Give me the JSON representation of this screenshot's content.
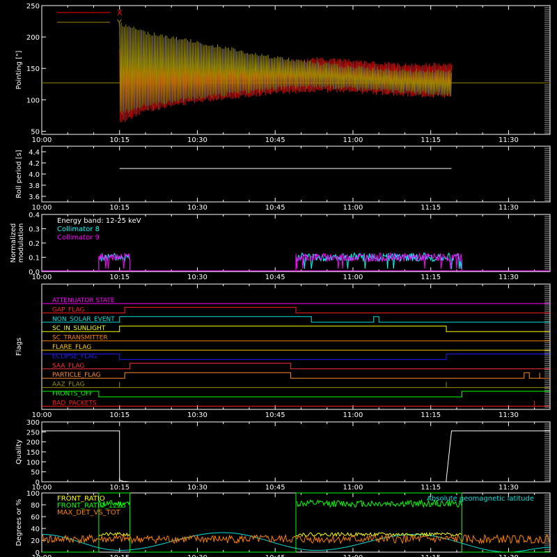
{
  "figure": {
    "background": "#000000",
    "axis_color": "#ffffff",
    "time_ticks": [
      "10:00",
      "10:15",
      "10:30",
      "10:45",
      "11:00",
      "11:15",
      "11:30"
    ]
  },
  "chart_data": [
    {
      "id": "pointing",
      "type": "line",
      "ylabel": "Pointing [\"]",
      "ylim": [
        45,
        250
      ],
      "yticks": [
        50,
        100,
        150,
        200,
        250
      ],
      "xlim": [
        "10:00",
        "11:38"
      ],
      "legend": {
        "placement": "top-left",
        "entries": [
          {
            "label": "X",
            "color": "#ff0000"
          },
          {
            "label": "Y",
            "color": "#9a8c00"
          }
        ]
      },
      "baseline_value": 127,
      "series": [
        {
          "name": "X",
          "color": "#ff0000",
          "start": "10:15",
          "end": "11:19",
          "envelope": {
            "t": [
              "10:15",
              "10:20",
              "10:30",
              "10:45",
              "10:53",
              "11:00",
              "11:10",
              "11:19"
            ],
            "hi": [
              185,
              170,
              160,
              163,
              168,
              165,
              158,
              160
            ],
            "lo": [
              60,
              80,
              95,
              108,
              112,
              110,
              105,
              102
            ]
          }
        },
        {
          "name": "Y",
          "color": "#9a8c00",
          "start": "10:15",
          "end": "11:19",
          "envelope": {
            "t": [
              "10:15",
              "10:20",
              "10:30",
              "10:45",
              "10:53",
              "11:00",
              "11:10",
              "11:19"
            ],
            "hi": [
              225,
              210,
              195,
              170,
              162,
              155,
              150,
              148
            ],
            "lo": [
              75,
              88,
              100,
              115,
              118,
              115,
              110,
              105
            ]
          }
        }
      ]
    },
    {
      "id": "roll",
      "type": "line",
      "ylabel": "Roll period [s]",
      "ylim": [
        3.5,
        4.5
      ],
      "yticks": [
        "3.6",
        "3.8",
        "4.0",
        "4.2",
        "4.4"
      ],
      "series": [
        {
          "name": "",
          "color": "#ffffff",
          "t": [
            "10:15",
            "11:19"
          ],
          "value": 4.1
        }
      ]
    },
    {
      "id": "modulation",
      "type": "line",
      "ylabel": "Normalized modulation",
      "ylim": [
        0,
        0.4
      ],
      "yticks": [
        "0.0",
        "0.1",
        "0.2",
        "0.3",
        "0.4"
      ],
      "legend": {
        "placement": "top-left",
        "entries": [
          {
            "label": "Energy band: 12-25 keV",
            "color": "#ffffff"
          },
          {
            "label": "Collimator 8",
            "color": "#00ffff"
          },
          {
            "label": "Collimator 9",
            "color": "#ff00ff"
          }
        ]
      },
      "intervals": [
        [
          "10:11",
          "10:17"
        ],
        [
          "10:49",
          "11:21"
        ]
      ],
      "typical_level": 0.1
    },
    {
      "id": "flags",
      "type": "line",
      "ylabel": "Flags",
      "flags": [
        {
          "label": "ATTENUATOR STATE",
          "color": "#ff00ff",
          "segments": [
            [
              "10:00",
              0
            ],
            [
              "11:38",
              0
            ]
          ]
        },
        {
          "label": "GAP_FLAG",
          "color": "#ff2020",
          "segments": [
            [
              "10:00",
              0
            ],
            [
              "10:16",
              0
            ],
            [
              "10:16",
              1
            ],
            [
              "10:49",
              1
            ],
            [
              "10:49",
              0
            ],
            [
              "11:38",
              0
            ]
          ]
        },
        {
          "label": "NON_SOLAR_EVENT",
          "color": "#00e0e0",
          "segments": [
            [
              "10:00",
              0
            ],
            [
              "10:15",
              0
            ],
            [
              "10:15",
              1
            ],
            [
              "10:52",
              1
            ],
            [
              "10:52",
              0
            ],
            [
              "11:04",
              0
            ],
            [
              "11:04",
              1
            ],
            [
              "11:05",
              1
            ],
            [
              "11:05",
              0
            ],
            [
              "11:38",
              0
            ]
          ]
        },
        {
          "label": "SC_IN_SUNLIGHT",
          "color": "#ffff00",
          "segments": [
            [
              "10:00",
              0
            ],
            [
              "10:15",
              0
            ],
            [
              "10:15",
              1
            ],
            [
              "11:18",
              1
            ],
            [
              "11:18",
              0
            ],
            [
              "11:38",
              0
            ]
          ]
        },
        {
          "label": "SC_TRANSMITTER",
          "color": "#ff8000",
          "segments": [
            [
              "10:00",
              0
            ],
            [
              "11:38",
              0
            ]
          ]
        },
        {
          "label": "FLARE_FLAG",
          "color": "#ffd000",
          "segments": [
            [
              "10:00",
              0
            ],
            [
              "11:38",
              0
            ]
          ]
        },
        {
          "label": "ECLIPSE_FLAG",
          "color": "#2020ff",
          "segments": [
            [
              "10:00",
              1
            ],
            [
              "10:15",
              1
            ],
            [
              "10:15",
              0
            ],
            [
              "11:18",
              0
            ],
            [
              "11:18",
              1
            ],
            [
              "11:38",
              1
            ]
          ]
        },
        {
          "label": "SAA_FLAG",
          "color": "#ff3030",
          "segments": [
            [
              "10:00",
              0
            ],
            [
              "10:17",
              0
            ],
            [
              "10:17",
              1
            ],
            [
              "10:48",
              1
            ],
            [
              "10:48",
              0
            ],
            [
              "11:38",
              0
            ]
          ]
        },
        {
          "label": "PARTICLE_FLAG",
          "color": "#ff8c30",
          "segments": [
            [
              "10:00",
              0
            ],
            [
              "10:16",
              0
            ],
            [
              "10:16",
              1
            ],
            [
              "10:48",
              1
            ],
            [
              "10:48",
              0
            ],
            [
              "11:33",
              0
            ],
            [
              "11:33",
              1
            ],
            [
              "11:34",
              1
            ],
            [
              "11:34",
              0
            ],
            [
              "11:36",
              0
            ],
            [
              "11:36",
              1
            ],
            [
              "11:36",
              0
            ],
            [
              "11:38",
              0
            ]
          ]
        },
        {
          "label": "AAZ_FLAG",
          "color": "#9a8c00",
          "segments": [
            [
              "10:00",
              0
            ],
            [
              "10:15",
              0
            ],
            [
              "10:15",
              1
            ],
            [
              "10:15",
              0
            ],
            [
              "11:18",
              0
            ],
            [
              "11:18",
              1
            ],
            [
              "11:18",
              0
            ],
            [
              "11:38",
              0
            ]
          ]
        },
        {
          "label": "FRONTS_OFF",
          "color": "#00ff00",
          "segments": [
            [
              "10:00",
              1
            ],
            [
              "10:11",
              1
            ],
            [
              "10:11",
              0
            ],
            [
              "11:21",
              0
            ],
            [
              "11:21",
              1
            ],
            [
              "11:38",
              1
            ]
          ]
        },
        {
          "label": "BAD_PACKETS",
          "color": "#ff2020",
          "segments": [
            [
              "10:00",
              0
            ],
            [
              "11:35",
              0
            ],
            [
              "11:35",
              1
            ],
            [
              "11:35",
              0
            ],
            [
              "11:38",
              0
            ]
          ]
        }
      ]
    },
    {
      "id": "quality",
      "type": "line",
      "ylabel": "Quality",
      "ylim": [
        0,
        300
      ],
      "yticks": [
        0,
        50,
        100,
        150,
        200,
        250,
        300
      ],
      "series": [
        {
          "name": "",
          "color": "#ffffff",
          "t": [
            "10:00",
            "10:15",
            "10:15",
            "10:15",
            "10:16",
            "10:16",
            "10:17",
            "11:18",
            "11:18",
            "11:19",
            "11:38"
          ],
          "v": [
            255,
            255,
            40,
            8,
            0,
            2,
            0,
            0,
            10,
            255,
            255
          ]
        }
      ]
    },
    {
      "id": "ratios",
      "type": "line",
      "ylabel": "Degrees or %",
      "ylim": [
        0,
        100
      ],
      "yticks": [
        0,
        20,
        40,
        60,
        80,
        100
      ],
      "legend": {
        "placement": "top-left",
        "entries": [
          {
            "label": "FRONT_RATIO",
            "color": "#ffff00"
          },
          {
            "label": "FRONT_RATIO_1225",
            "color": "#00ff00"
          },
          {
            "label": "MAX_DET_VS_TOT",
            "color": "#ff8000"
          }
        ]
      },
      "legend_right": {
        "label": "Absolute geomagnetic latitude",
        "color": "#00e0e0"
      },
      "latitude": {
        "t": [
          "10:00",
          "10:15",
          "10:35",
          "10:53",
          "11:12",
          "11:30",
          "11:38"
        ],
        "v": [
          30,
          3,
          33,
          3,
          30,
          0,
          8
        ]
      },
      "front_1225_level": 82,
      "front_ratio_level": 25,
      "max_det_level": 22
    }
  ]
}
